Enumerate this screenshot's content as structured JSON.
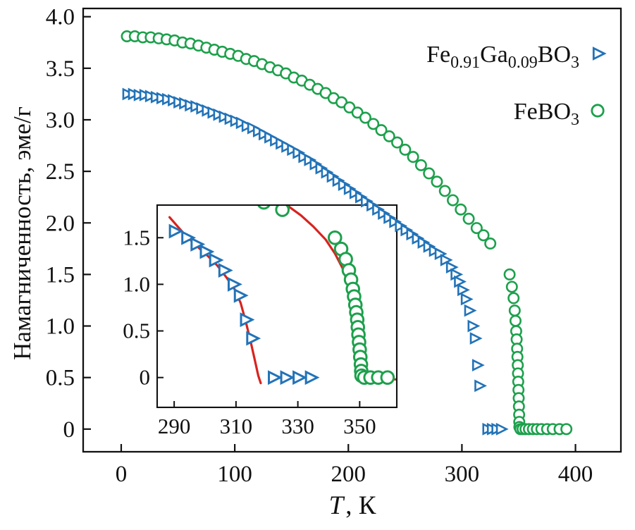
{
  "figure": {
    "background": "#ffffff",
    "axis_color": "#111111"
  },
  "chart_data": {
    "type": "scatter",
    "title": "",
    "xlabel_italic": "T",
    "xlabel_rest": ", К",
    "ylabel": "Намагниченность, эме/г",
    "xlim": [
      -33.5,
      440
    ],
    "ylim": [
      -0.22,
      4.08
    ],
    "x_ticks": [
      0,
      100,
      200,
      300,
      400
    ],
    "y_ticks": [
      0,
      0.5,
      1,
      1.5,
      2,
      2.5,
      3,
      3.5,
      4
    ],
    "grid": false,
    "legend_position": "top-right",
    "series": [
      {
        "slug": "fe091ga009bo3",
        "label_segments": [
          {
            "text": "Fe"
          },
          {
            "text": "0.91",
            "sub": true
          },
          {
            "text": "Ga"
          },
          {
            "text": "0.09",
            "sub": true
          },
          {
            "text": "BO"
          },
          {
            "text": "3",
            "sub": true
          }
        ],
        "marker": "triangle-right",
        "color": "#2273b8",
        "points": [
          [
            5,
            3.25
          ],
          [
            10,
            3.25
          ],
          [
            15,
            3.24
          ],
          [
            20,
            3.24
          ],
          [
            25,
            3.23
          ],
          [
            30,
            3.22
          ],
          [
            35,
            3.21
          ],
          [
            40,
            3.2
          ],
          [
            45,
            3.19
          ],
          [
            50,
            3.17
          ],
          [
            55,
            3.16
          ],
          [
            60,
            3.14
          ],
          [
            65,
            3.13
          ],
          [
            70,
            3.11
          ],
          [
            75,
            3.09
          ],
          [
            80,
            3.07
          ],
          [
            85,
            3.05
          ],
          [
            90,
            3.03
          ],
          [
            95,
            3.01
          ],
          [
            100,
            2.99
          ],
          [
            105,
            2.97
          ],
          [
            110,
            2.94
          ],
          [
            115,
            2.92
          ],
          [
            120,
            2.89
          ],
          [
            125,
            2.86
          ],
          [
            130,
            2.83
          ],
          [
            135,
            2.8
          ],
          [
            140,
            2.77
          ],
          [
            145,
            2.74
          ],
          [
            150,
            2.71
          ],
          [
            155,
            2.68
          ],
          [
            160,
            2.64
          ],
          [
            165,
            2.61
          ],
          [
            170,
            2.57
          ],
          [
            175,
            2.53
          ],
          [
            180,
            2.49
          ],
          [
            185,
            2.45
          ],
          [
            190,
            2.41
          ],
          [
            195,
            2.37
          ],
          [
            200,
            2.33
          ],
          [
            205,
            2.29
          ],
          [
            210,
            2.25
          ],
          [
            215,
            2.21
          ],
          [
            220,
            2.17
          ],
          [
            225,
            2.13
          ],
          [
            230,
            2.09
          ],
          [
            235,
            2.05
          ],
          [
            240,
            2.01
          ],
          [
            245,
            1.97
          ],
          [
            250,
            1.93
          ],
          [
            255,
            1.89
          ],
          [
            260,
            1.85
          ],
          [
            265,
            1.81
          ],
          [
            270,
            1.77
          ],
          [
            275,
            1.73
          ],
          [
            280,
            1.7
          ],
          [
            285,
            1.64
          ],
          [
            290,
            1.57
          ],
          [
            294,
            1.5
          ],
          [
            297,
            1.43
          ],
          [
            300,
            1.35
          ],
          [
            303,
            1.26
          ],
          [
            306,
            1.15
          ],
          [
            309,
            1.0
          ],
          [
            311,
            0.88
          ],
          [
            313,
            0.62
          ],
          [
            315,
            0.42
          ],
          [
            322,
            0
          ],
          [
            326,
            0
          ],
          [
            330,
            0
          ],
          [
            334,
            0
          ]
        ]
      },
      {
        "slug": "febo3",
        "label_segments": [
          {
            "text": "FeBO"
          },
          {
            "text": "3",
            "sub": true
          }
        ],
        "marker": "circle",
        "color": "#1da04c",
        "points": [
          [
            5,
            3.81
          ],
          [
            12,
            3.81
          ],
          [
            19,
            3.8
          ],
          [
            26,
            3.8
          ],
          [
            33,
            3.79
          ],
          [
            40,
            3.78
          ],
          [
            47,
            3.77
          ],
          [
            54,
            3.75
          ],
          [
            61,
            3.74
          ],
          [
            68,
            3.72
          ],
          [
            75,
            3.7
          ],
          [
            82,
            3.68
          ],
          [
            89,
            3.66
          ],
          [
            96,
            3.64
          ],
          [
            103,
            3.62
          ],
          [
            110,
            3.59
          ],
          [
            117,
            3.57
          ],
          [
            124,
            3.54
          ],
          [
            131,
            3.51
          ],
          [
            138,
            3.48
          ],
          [
            145,
            3.45
          ],
          [
            152,
            3.41
          ],
          [
            159,
            3.38
          ],
          [
            166,
            3.34
          ],
          [
            173,
            3.3
          ],
          [
            180,
            3.26
          ],
          [
            187,
            3.21
          ],
          [
            194,
            3.17
          ],
          [
            201,
            3.12
          ],
          [
            208,
            3.07
          ],
          [
            215,
            3.02
          ],
          [
            222,
            2.96
          ],
          [
            229,
            2.9
          ],
          [
            236,
            2.84
          ],
          [
            243,
            2.78
          ],
          [
            250,
            2.71
          ],
          [
            257,
            2.64
          ],
          [
            264,
            2.56
          ],
          [
            271,
            2.48
          ],
          [
            278,
            2.4
          ],
          [
            285,
            2.31
          ],
          [
            292,
            2.22
          ],
          [
            299,
            2.13
          ],
          [
            306,
            2.04
          ],
          [
            313,
            1.95
          ],
          [
            319,
            1.88
          ],
          [
            325,
            1.8
          ],
          [
            342,
            1.5
          ],
          [
            344,
            1.38
          ],
          [
            345.5,
            1.27
          ],
          [
            346.5,
            1.15
          ],
          [
            347.2,
            1.05
          ],
          [
            347.8,
            0.95
          ],
          [
            348.2,
            0.87
          ],
          [
            348.6,
            0.78
          ],
          [
            348.9,
            0.7
          ],
          [
            349.2,
            0.62
          ],
          [
            349.4,
            0.54
          ],
          [
            349.6,
            0.46
          ],
          [
            349.8,
            0.38
          ],
          [
            350,
            0.3
          ],
          [
            350.2,
            0.22
          ],
          [
            350.4,
            0.14
          ],
          [
            350.5,
            0.07
          ],
          [
            350.6,
            0.02
          ],
          [
            351.5,
            0
          ],
          [
            353.5,
            0
          ],
          [
            356,
            0
          ],
          [
            359,
            0
          ],
          [
            362.5,
            0
          ],
          [
            366,
            0
          ],
          [
            370,
            0
          ],
          [
            375,
            0
          ],
          [
            380,
            0
          ],
          [
            386,
            0
          ],
          [
            392,
            0
          ]
        ]
      }
    ],
    "inset": {
      "xlim": [
        284.5,
        362
      ],
      "ylim": [
        -0.32,
        1.85
      ],
      "x_ticks": [
        290,
        310,
        330,
        350
      ],
      "y_ticks": [
        0,
        0.5,
        1,
        1.5
      ],
      "fit_color": "#d8231f",
      "series_refs": [
        {
          "series": 0,
          "t_min": 288,
          "t_max": 336
        },
        {
          "series": 1,
          "t_min": 317,
          "t_max": 360
        }
      ],
      "fit_lines": [
        {
          "series": 0,
          "points": [
            [
              288.5,
              1.72
            ],
            [
              293,
              1.55
            ],
            [
              297,
              1.42
            ],
            [
              301,
              1.3
            ],
            [
              304,
              1.2
            ],
            [
              307,
              1.07
            ],
            [
              309.5,
              0.95
            ],
            [
              311.5,
              0.8
            ],
            [
              313,
              0.62
            ],
            [
              314.5,
              0.42
            ],
            [
              316,
              0.2
            ],
            [
              317.2,
              0.02
            ],
            [
              318,
              -0.06
            ]
          ]
        },
        {
          "series": 1,
          "points": [
            [
              321,
              1.98
            ],
            [
              326,
              1.86
            ],
            [
              331,
              1.74
            ],
            [
              335,
              1.62
            ],
            [
              339,
              1.48
            ],
            [
              342,
              1.33
            ],
            [
              344.5,
              1.17
            ],
            [
              346.3,
              1.0
            ],
            [
              347.6,
              0.84
            ],
            [
              348.6,
              0.66
            ],
            [
              349.4,
              0.48
            ],
            [
              350,
              0.3
            ],
            [
              350.5,
              0.12
            ],
            [
              350.9,
              0
            ],
            [
              352.5,
              -0.02
            ],
            [
              361.8,
              -0.02
            ]
          ]
        }
      ]
    }
  }
}
